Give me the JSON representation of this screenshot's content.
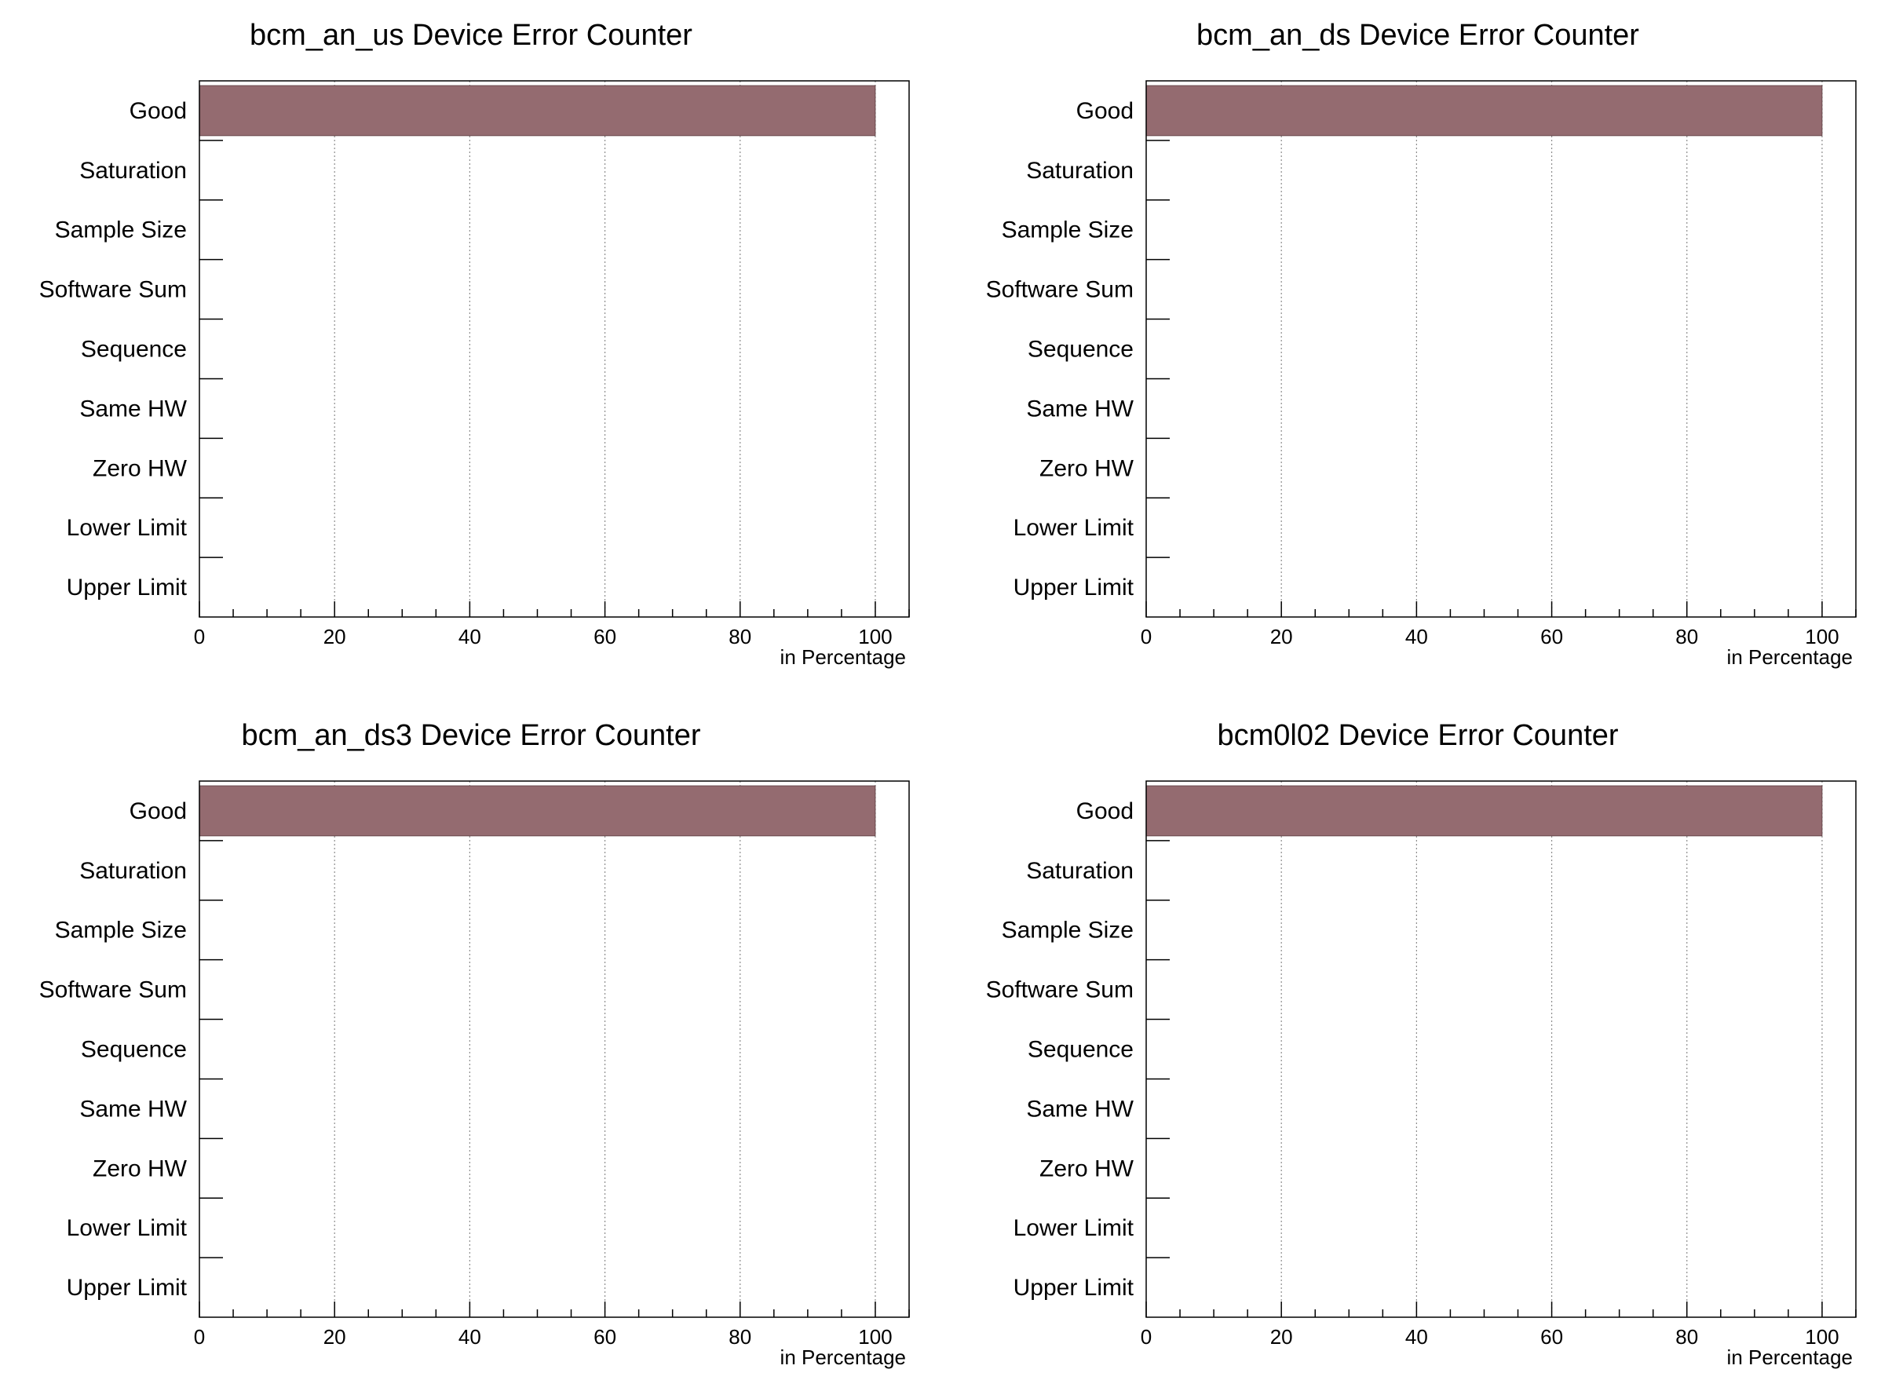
{
  "colors": {
    "bar": "#946b70",
    "frame": "#000000",
    "grid": "#8c8c8c",
    "background": "#ffffff"
  },
  "chart_data": [
    {
      "type": "bar",
      "orientation": "horizontal",
      "title": "bcm_an_us Device  Error Counter",
      "xlabel": "in Percentage",
      "categories": [
        "Good",
        "Saturation",
        "Sample Size",
        "Software Sum",
        "Sequence",
        "Same HW",
        "Zero HW",
        "Lower Limit",
        "Upper Limit"
      ],
      "values": [
        100,
        0,
        0,
        0,
        0,
        0,
        0,
        0,
        0
      ],
      "xlim": [
        0,
        105
      ],
      "xticks": [
        0,
        20,
        40,
        60,
        80,
        100
      ],
      "grid": "vertical"
    },
    {
      "type": "bar",
      "orientation": "horizontal",
      "title": "bcm_an_ds Device  Error Counter",
      "xlabel": "in Percentage",
      "categories": [
        "Good",
        "Saturation",
        "Sample Size",
        "Software Sum",
        "Sequence",
        "Same HW",
        "Zero HW",
        "Lower Limit",
        "Upper Limit"
      ],
      "values": [
        100,
        0,
        0,
        0,
        0,
        0,
        0,
        0,
        0
      ],
      "xlim": [
        0,
        105
      ],
      "xticks": [
        0,
        20,
        40,
        60,
        80,
        100
      ],
      "grid": "vertical"
    },
    {
      "type": "bar",
      "orientation": "horizontal",
      "title": "bcm_an_ds3 Device  Error Counter",
      "xlabel": "in Percentage",
      "categories": [
        "Good",
        "Saturation",
        "Sample Size",
        "Software Sum",
        "Sequence",
        "Same HW",
        "Zero HW",
        "Lower Limit",
        "Upper Limit"
      ],
      "values": [
        100,
        0,
        0,
        0,
        0,
        0,
        0,
        0,
        0
      ],
      "xlim": [
        0,
        105
      ],
      "xticks": [
        0,
        20,
        40,
        60,
        80,
        100
      ],
      "grid": "vertical"
    },
    {
      "type": "bar",
      "orientation": "horizontal",
      "title": "bcm0l02 Device  Error Counter",
      "xlabel": "in Percentage",
      "categories": [
        "Good",
        "Saturation",
        "Sample Size",
        "Software Sum",
        "Sequence",
        "Same HW",
        "Zero HW",
        "Lower Limit",
        "Upper Limit"
      ],
      "values": [
        100,
        0,
        0,
        0,
        0,
        0,
        0,
        0,
        0
      ],
      "xlim": [
        0,
        105
      ],
      "xticks": [
        0,
        20,
        40,
        60,
        80,
        100
      ],
      "grid": "vertical"
    }
  ]
}
